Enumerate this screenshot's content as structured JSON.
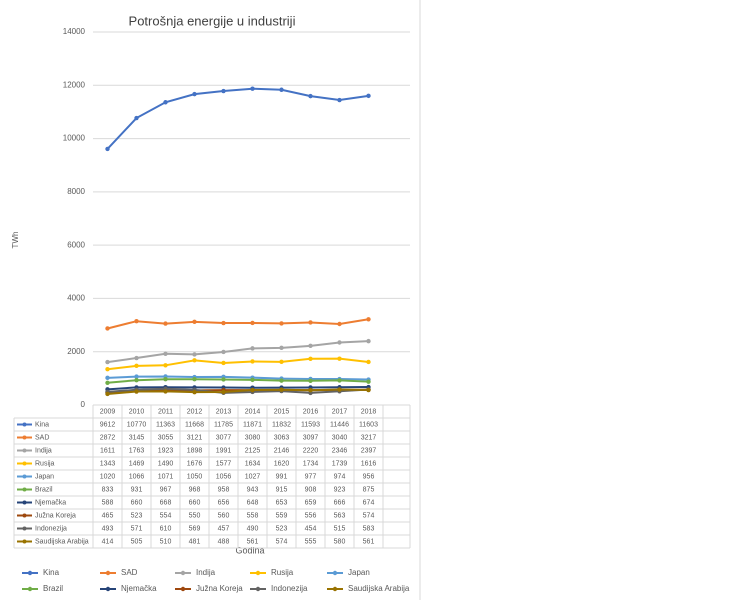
{
  "chart_data": {
    "type": "line",
    "title": "Potrošnja energije u industriji",
    "x_label": "Godina",
    "y_label": "TWh",
    "categories": [
      "2009",
      "2010",
      "2011",
      "2012",
      "2013",
      "2014",
      "2015",
      "2016",
      "2017",
      "2018"
    ],
    "ylim": [
      0,
      14000
    ],
    "yticks": [
      0,
      2000,
      4000,
      6000,
      8000,
      10000,
      12000,
      14000
    ],
    "grid": true,
    "series": [
      {
        "name": "Kina",
        "color": "#4472c4",
        "values": [
          9612,
          10770,
          11363,
          11668,
          11785,
          11871,
          11832,
          11593,
          11446,
          11603
        ]
      },
      {
        "name": "SAD",
        "color": "#ed7d31",
        "values": [
          2872,
          3145,
          3055,
          3121,
          3077,
          3080,
          3063,
          3097,
          3040,
          3217
        ]
      },
      {
        "name": "Indija",
        "color": "#a5a5a5",
        "values": [
          1611,
          1763,
          1923,
          1898,
          1991,
          2125,
          2146,
          2220,
          2346,
          2397
        ]
      },
      {
        "name": "Rusija",
        "color": "#ffc000",
        "values": [
          1343,
          1469,
          1490,
          1676,
          1577,
          1634,
          1620,
          1734,
          1739,
          1616
        ]
      },
      {
        "name": "Japan",
        "color": "#5b9bd5",
        "values": [
          1020,
          1066,
          1071,
          1050,
          1056,
          1027,
          991,
          977,
          974,
          956
        ]
      },
      {
        "name": "Brazil",
        "color": "#70ad47",
        "values": [
          833,
          931,
          967,
          968,
          958,
          943,
          915,
          908,
          923,
          875
        ]
      },
      {
        "name": "Njemačka",
        "color": "#264478",
        "values": [
          588,
          660,
          668,
          660,
          656,
          648,
          653,
          659,
          666,
          674
        ]
      },
      {
        "name": "Južna Koreja",
        "color": "#9e480e",
        "values": [
          465,
          523,
          554,
          550,
          560,
          558,
          559,
          556,
          563,
          574
        ]
      },
      {
        "name": "Indonezija",
        "color": "#636363",
        "values": [
          493,
          571,
          610,
          569,
          457,
          490,
          523,
          454,
          515,
          583
        ]
      },
      {
        "name": "Saudijska Arabija",
        "color": "#997300",
        "values": [
          414,
          505,
          510,
          481,
          488,
          561,
          574,
          555,
          580,
          561
        ]
      }
    ]
  }
}
